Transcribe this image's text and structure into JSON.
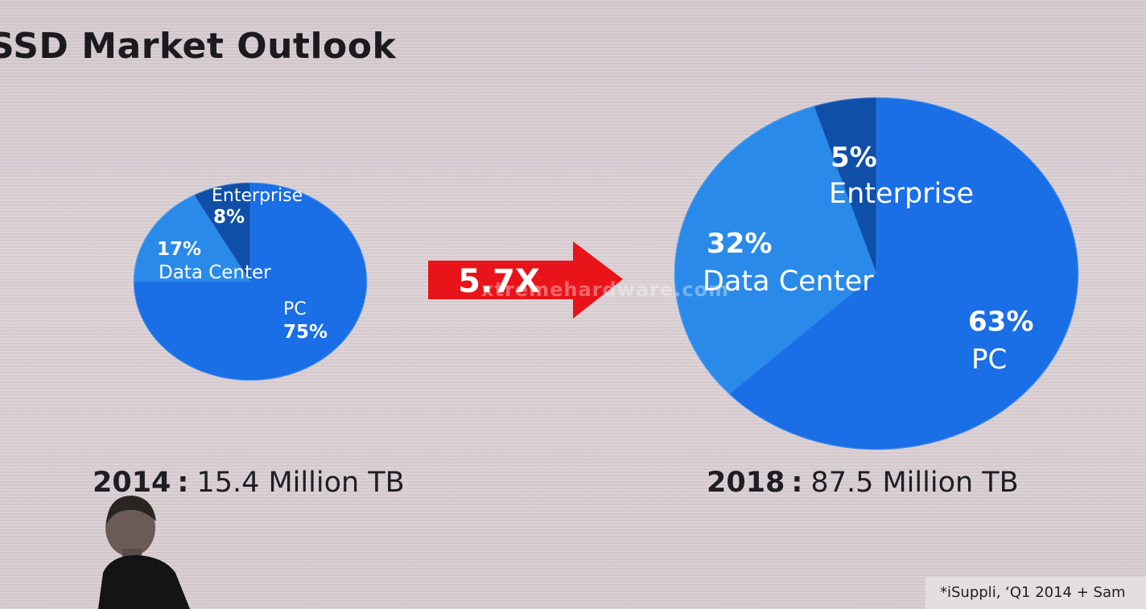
{
  "slide": {
    "title": "SSD Market Outlook",
    "multiplier": "5.7X",
    "footnote": "*iSuppli, ‘Q1 2014 + Sam",
    "watermark": "xtremehardware.com"
  },
  "colors": {
    "pc": "#1a6ee6",
    "data_center": "#2a8aea",
    "enterprise": "#0f4fa8",
    "arrow": "#e8141a",
    "label": "#ffffff"
  },
  "chart_data": [
    {
      "type": "pie",
      "year": "2014",
      "separator": ":",
      "total": "15.4 Million TB",
      "slices": [
        {
          "name": "PC",
          "value": 75,
          "pct_label": "75%"
        },
        {
          "name": "Data Center",
          "value": 17,
          "pct_label": "17%"
        },
        {
          "name": "Enterprise",
          "value": 8,
          "pct_label": "8%"
        }
      ]
    },
    {
      "type": "pie",
      "year": "2018",
      "separator": ":",
      "total": "87.5 Million TB",
      "slices": [
        {
          "name": "PC",
          "value": 63,
          "pct_label": "63%"
        },
        {
          "name": "Data Center",
          "value": 32,
          "pct_label": "32%"
        },
        {
          "name": "Enterprise",
          "value": 5,
          "pct_label": "5%"
        }
      ]
    }
  ]
}
